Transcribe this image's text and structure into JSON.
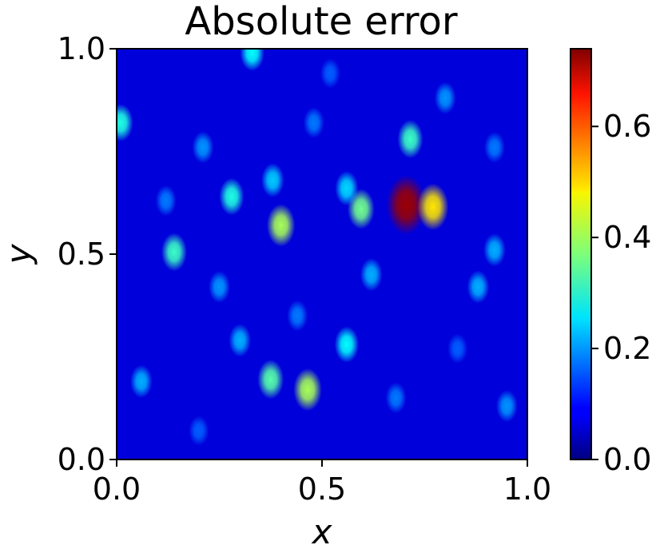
{
  "chart_data": {
    "type": "heatmap",
    "title": "Absolute error",
    "xlabel": "x",
    "ylabel": "y",
    "xlim": [
      0.0,
      1.0
    ],
    "ylim": [
      0.0,
      1.0
    ],
    "x_ticks": [
      0.0,
      0.5,
      1.0
    ],
    "x_tick_labels": [
      "0.0",
      "0.5",
      "1.0"
    ],
    "y_ticks": [
      0.0,
      0.5,
      1.0
    ],
    "y_tick_labels": [
      "0.0",
      "0.5",
      "1.0"
    ],
    "colormap": "jet",
    "colorbar": {
      "range": [
        0.0,
        0.74
      ],
      "ticks": [
        0.0,
        0.2,
        0.4,
        0.6
      ],
      "tick_labels": [
        "0.0",
        "0.2",
        "0.4",
        "0.6"
      ],
      "placement": "right"
    },
    "grid": false,
    "background_value": 0.07,
    "hotspots": [
      {
        "x": 0.705,
        "y": 0.62,
        "value": 0.72
      },
      {
        "x": 0.77,
        "y": 0.615,
        "value": 0.48
      },
      {
        "x": 0.595,
        "y": 0.61,
        "value": 0.36
      },
      {
        "x": 0.715,
        "y": 0.78,
        "value": 0.32
      },
      {
        "x": 0.4,
        "y": 0.57,
        "value": 0.4
      },
      {
        "x": 0.465,
        "y": 0.17,
        "value": 0.4
      },
      {
        "x": 0.375,
        "y": 0.195,
        "value": 0.34
      },
      {
        "x": 0.14,
        "y": 0.505,
        "value": 0.32
      },
      {
        "x": 0.28,
        "y": 0.64,
        "value": 0.3
      },
      {
        "x": 0.01,
        "y": 0.82,
        "value": 0.3
      },
      {
        "x": 0.33,
        "y": 0.99,
        "value": 0.28
      },
      {
        "x": 0.56,
        "y": 0.28,
        "value": 0.28
      },
      {
        "x": 0.88,
        "y": 0.42,
        "value": 0.22
      },
      {
        "x": 0.92,
        "y": 0.51,
        "value": 0.22
      },
      {
        "x": 0.3,
        "y": 0.29,
        "value": 0.22
      },
      {
        "x": 0.38,
        "y": 0.68,
        "value": 0.24
      },
      {
        "x": 0.21,
        "y": 0.76,
        "value": 0.2
      },
      {
        "x": 0.62,
        "y": 0.45,
        "value": 0.22
      },
      {
        "x": 0.06,
        "y": 0.19,
        "value": 0.22
      },
      {
        "x": 0.8,
        "y": 0.88,
        "value": 0.2
      },
      {
        "x": 0.95,
        "y": 0.13,
        "value": 0.2
      },
      {
        "x": 0.25,
        "y": 0.42,
        "value": 0.2
      },
      {
        "x": 0.48,
        "y": 0.82,
        "value": 0.18
      },
      {
        "x": 0.56,
        "y": 0.66,
        "value": 0.25
      },
      {
        "x": 0.2,
        "y": 0.07,
        "value": 0.16
      },
      {
        "x": 0.68,
        "y": 0.15,
        "value": 0.18
      },
      {
        "x": 0.92,
        "y": 0.76,
        "value": 0.18
      },
      {
        "x": 0.12,
        "y": 0.63,
        "value": 0.18
      },
      {
        "x": 0.52,
        "y": 0.94,
        "value": 0.16
      },
      {
        "x": 0.83,
        "y": 0.27,
        "value": 0.16
      },
      {
        "x": 0.44,
        "y": 0.35,
        "value": 0.18
      }
    ]
  }
}
